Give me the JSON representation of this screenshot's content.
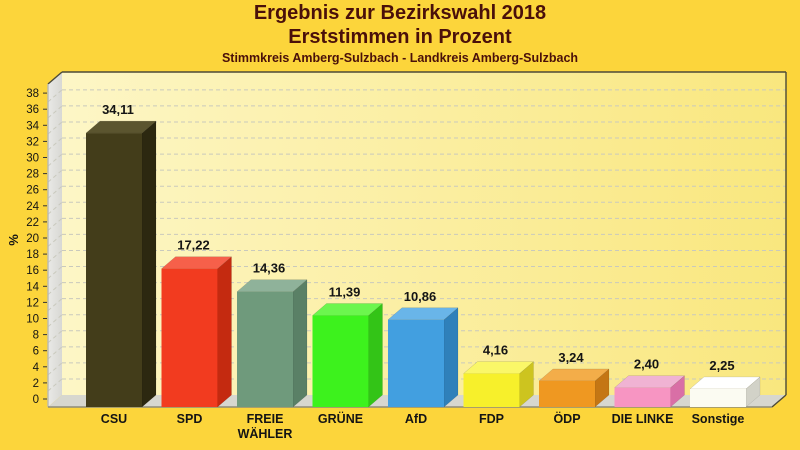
{
  "page": {
    "background_color": "#fcd53b"
  },
  "header": {
    "title_line1": "Ergebnis zur Bezirkswahl 2018",
    "title_line2": "Erststimmen in Prozent",
    "subtitle": "Stimmkreis Amberg-Sulzbach - Landkreis Amberg-Sulzbach",
    "title_color": "#4a100a"
  },
  "chart_data": {
    "type": "bar",
    "style": "3d-column",
    "title": "Ergebnis zur Bezirkswahl 2018",
    "subtitle": "Erststimmen in Prozent",
    "caption": "Stimmkreis Amberg-Sulzbach - Landkreis Amberg-Sulzbach",
    "xlabel": "",
    "ylabel": "%",
    "ylim": [
      0,
      38
    ],
    "ytick_step": 2,
    "yticks": [
      0,
      2,
      4,
      6,
      8,
      10,
      12,
      14,
      16,
      18,
      20,
      22,
      24,
      26,
      28,
      30,
      32,
      34,
      36,
      38
    ],
    "grid": "horizontal-dashed",
    "legend": "none",
    "categories": [
      "CSU",
      "SPD",
      "FREIE WÄHLER",
      "GRÜNE",
      "AfD",
      "FDP",
      "ÖDP",
      "DIE LINKE",
      "Sonstige"
    ],
    "categories_display": [
      [
        "CSU"
      ],
      [
        "SPD"
      ],
      [
        "FREIE",
        "WÄHLER"
      ],
      [
        "GRÜNE"
      ],
      [
        "AfD"
      ],
      [
        "FDP"
      ],
      [
        "ÖDP"
      ],
      [
        "DIE LINKE"
      ],
      [
        "Sonstige"
      ]
    ],
    "values": [
      34.11,
      17.22,
      14.36,
      11.39,
      10.86,
      4.16,
      3.24,
      2.4,
      2.25
    ],
    "value_labels": [
      "34,11",
      "17,22",
      "14,36",
      "11,39",
      "10,86",
      "4,16",
      "3,24",
      "2,40",
      "2,25"
    ],
    "bar_colors": [
      {
        "party": "CSU",
        "front": "#433d1a",
        "top": "#5b552f",
        "side": "#2c2810"
      },
      {
        "party": "SPD",
        "front": "#f23b1f",
        "top": "#f6604a",
        "side": "#c42a10"
      },
      {
        "party": "FREIE WÄHLER",
        "front": "#6f9a7c",
        "top": "#8fb29a",
        "side": "#5a8066"
      },
      {
        "party": "GRÜNE",
        "front": "#3df21d",
        "top": "#6cf64e",
        "side": "#33c417"
      },
      {
        "party": "AfD",
        "front": "#429fe0",
        "top": "#69b5e9",
        "side": "#2f80ba"
      },
      {
        "party": "FDP",
        "front": "#f7f02b",
        "top": "#faf768",
        "side": "#cdc41f"
      },
      {
        "party": "ÖDP",
        "front": "#ef9821",
        "top": "#f3ad49",
        "side": "#c47614"
      },
      {
        "party": "DIE LINKE",
        "front": "#f795c2",
        "top": "#f0b3d3",
        "side": "#d96fa6"
      },
      {
        "party": "Sonstige",
        "front": "#fbfbf2",
        "top": "#ffffff",
        "side": "#d2d2c8"
      }
    ],
    "text_color": "#141414",
    "wall_color_left": "#fdf6c6",
    "wall_color_right": "#f9e77e",
    "floor_color": "#d7d7cf",
    "side_wall_color": "#d8d8d4",
    "gridline_color": "#c9c9bd",
    "frame_color": "#4c4a38"
  }
}
